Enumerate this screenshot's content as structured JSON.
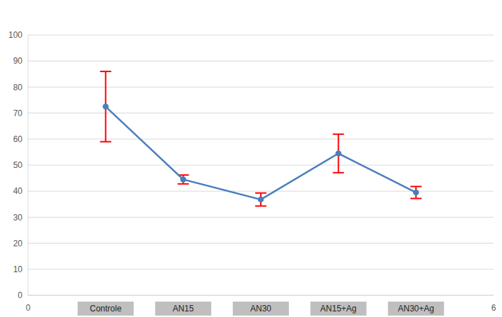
{
  "chart_data": {
    "type": "line",
    "x": [
      1,
      2,
      3,
      4,
      5
    ],
    "values": [
      72.5,
      44.5,
      36.8,
      54.5,
      39.5
    ],
    "errors": [
      13.5,
      1.7,
      2.5,
      7.4,
      2.3
    ],
    "color": "#4a7ebb",
    "marker": "circle",
    "xlim": [
      0,
      6
    ],
    "xticks": [
      0,
      {
        "value": 1,
        "label": "Controle"
      },
      {
        "value": 2,
        "label": "AN15"
      },
      {
        "value": 3,
        "label": "AN30"
      },
      {
        "value": 4,
        "label": "AN15+Ag"
      },
      {
        "value": 5,
        "label": "AN30+Ag"
      },
      6
    ],
    "ylim": [
      0,
      100
    ],
    "yticks": [
      0,
      10,
      20,
      30,
      40,
      50,
      60,
      70,
      80,
      90,
      100
    ],
    "grid": true
  }
}
